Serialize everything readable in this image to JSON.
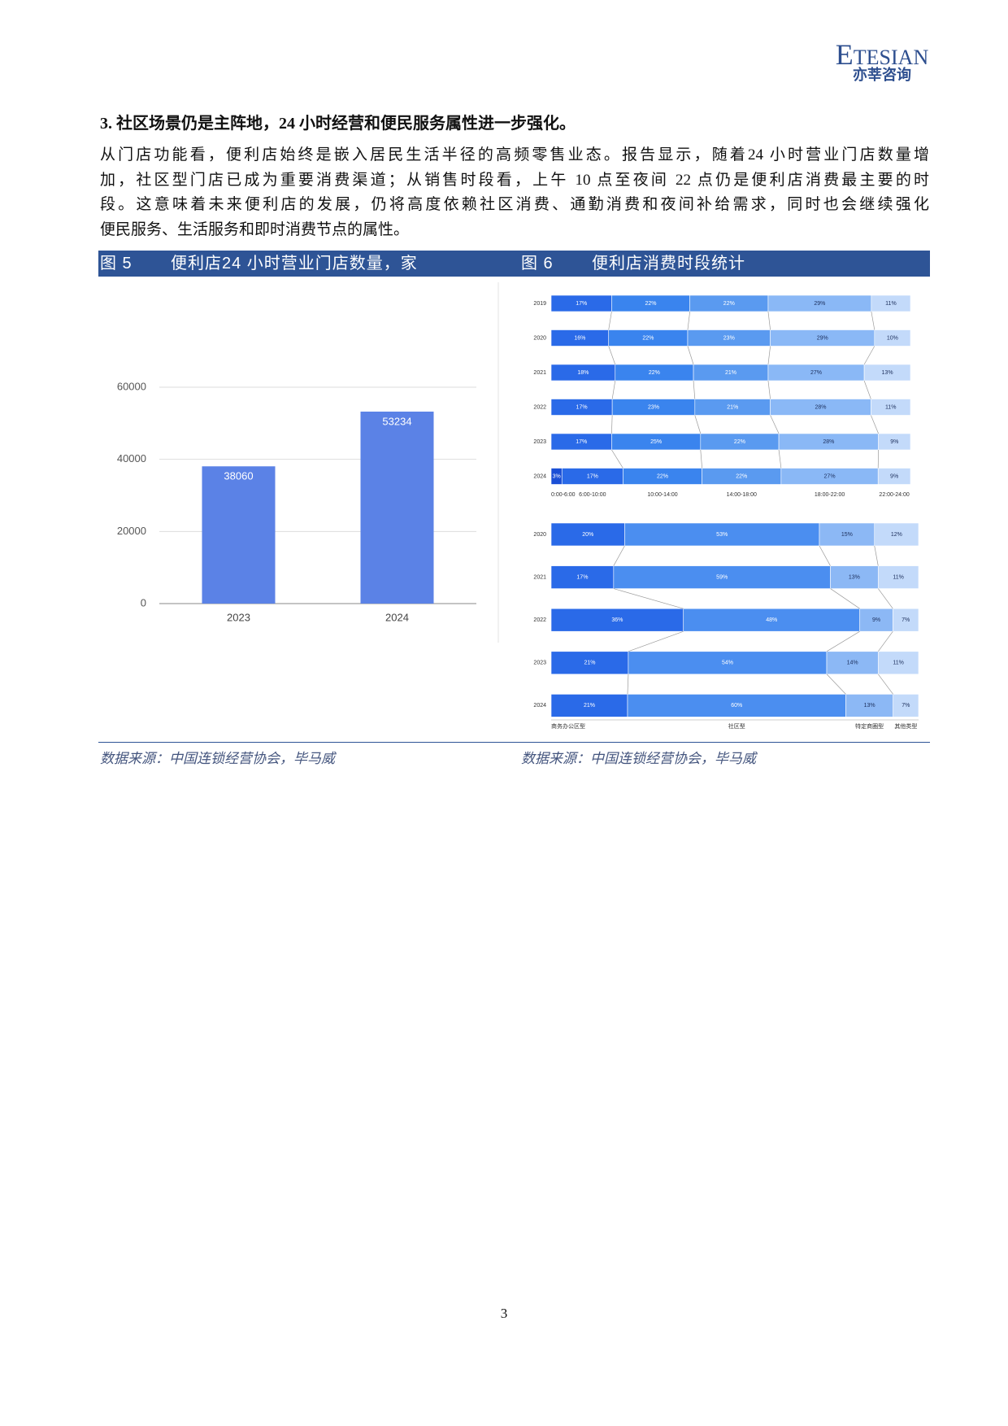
{
  "header": {
    "logo": "ETESIAN",
    "logo_cn": "亦莘咨询"
  },
  "section_heading": "3. 社区场景仍是主阵地，24 小时经营和便民服务属性进一步强化。",
  "paragraph_lines": [
    "从门店功能看，便利店始终是嵌入居民生活半径的高频零售业态。报告显示，随着24 小时营业门店数量增",
    "加，社区型门店已成为重要消费渠道；从销售时段看，上午 10 点至夜间 22 点仍是便利店消费最主要的时",
    "段。这意味着未来便利店的发展，仍将高度依赖社区消费、通勤消费和夜间补给需求，同时也会继续强化",
    "便民服务、生活服务和即时消费节点的属性。"
  ],
  "figures": [
    {
      "number": "图 5",
      "title": "便利店24 小时营业门店数量，家",
      "source": "数据来源：中国连锁经营协会，毕马威"
    },
    {
      "number": "图 6",
      "title": "便利店消费时段统计",
      "source": "数据来源：中国连锁经营协会，毕马威"
    }
  ],
  "chart_data": [
    {
      "type": "bar",
      "categories": [
        "2023",
        "2024"
      ],
      "values": [
        38060,
        53234
      ],
      "color": "#5b82e6",
      "ylim": [
        0,
        60000
      ],
      "yticks": [
        0,
        20000,
        40000,
        60000
      ],
      "grid": true
    },
    {
      "type": "stacked_bar_h",
      "categories": [
        "2019",
        "2020",
        "2021",
        "2022",
        "2023",
        "2024"
      ],
      "series": [
        {
          "name": "0:00-6:00",
          "color": "#1a4fd6",
          "values": [
            null,
            null,
            null,
            null,
            null,
            3
          ],
          "value_labels": [
            null,
            null,
            null,
            null,
            null,
            "3%"
          ]
        },
        {
          "name": "6:00-10:00",
          "color": "#2a6ae8",
          "values": [
            17,
            16,
            18,
            17,
            17,
            17
          ],
          "value_labels": [
            "17%",
            "16%",
            "18%",
            "17%",
            "17%",
            "17%"
          ]
        },
        {
          "name": "10:00-14:00",
          "color": "#3a84ee",
          "values": [
            22,
            22,
            22,
            23,
            25,
            22
          ],
          "value_labels": [
            "22%",
            "22%",
            "22%",
            "23%",
            "25%",
            "22%"
          ]
        },
        {
          "name": "14:00-18:00",
          "color": "#5a9af0",
          "values": [
            22,
            23,
            21,
            21,
            22,
            22
          ],
          "value_labels": [
            "22%",
            "23%",
            "21%",
            "21%",
            "22%",
            "22%"
          ]
        },
        {
          "name": "18:00-22:00",
          "color": "#8ab8f6",
          "values": [
            29,
            29,
            27,
            28,
            28,
            27
          ],
          "value_labels": [
            "29%",
            "29%",
            "27%",
            "28%",
            "28%",
            "27%"
          ]
        },
        {
          "name": "22:00-24:00",
          "color": "#c3dafa",
          "values": [
            11,
            10,
            13,
            11,
            9,
            9
          ],
          "value_labels": [
            "11%",
            "10%",
            "13%",
            "11%",
            "9%",
            "9%"
          ]
        }
      ]
    },
    {
      "type": "stacked_bar_h",
      "categories": [
        "2020",
        "2021",
        "2022",
        "2023",
        "2024"
      ],
      "series": [
        {
          "name": "商务办公区型",
          "color": "#2a6ae8",
          "values": [
            20,
            17,
            36,
            21,
            21
          ],
          "value_labels": [
            "20%",
            "17%",
            "36%",
            "21%",
            "21%"
          ]
        },
        {
          "name": "社区型",
          "color": "#4b8ef0",
          "values": [
            53,
            59,
            48,
            54,
            60
          ],
          "value_labels": [
            "53%",
            "59%",
            "48%",
            "54%",
            "60%"
          ]
        },
        {
          "name": "特定商圈型",
          "color": "#8cb8f5",
          "values": [
            15,
            13,
            9,
            14,
            13
          ],
          "value_labels": [
            "15%",
            "13%",
            "9%",
            "14%",
            "13%"
          ]
        },
        {
          "name": "其他类型",
          "color": "#c3dafa",
          "values": [
            12,
            11,
            7,
            11,
            7
          ],
          "value_labels": [
            "12%",
            "11%",
            "7%",
            "11%",
            "7%"
          ]
        }
      ]
    }
  ],
  "page_number": "3"
}
